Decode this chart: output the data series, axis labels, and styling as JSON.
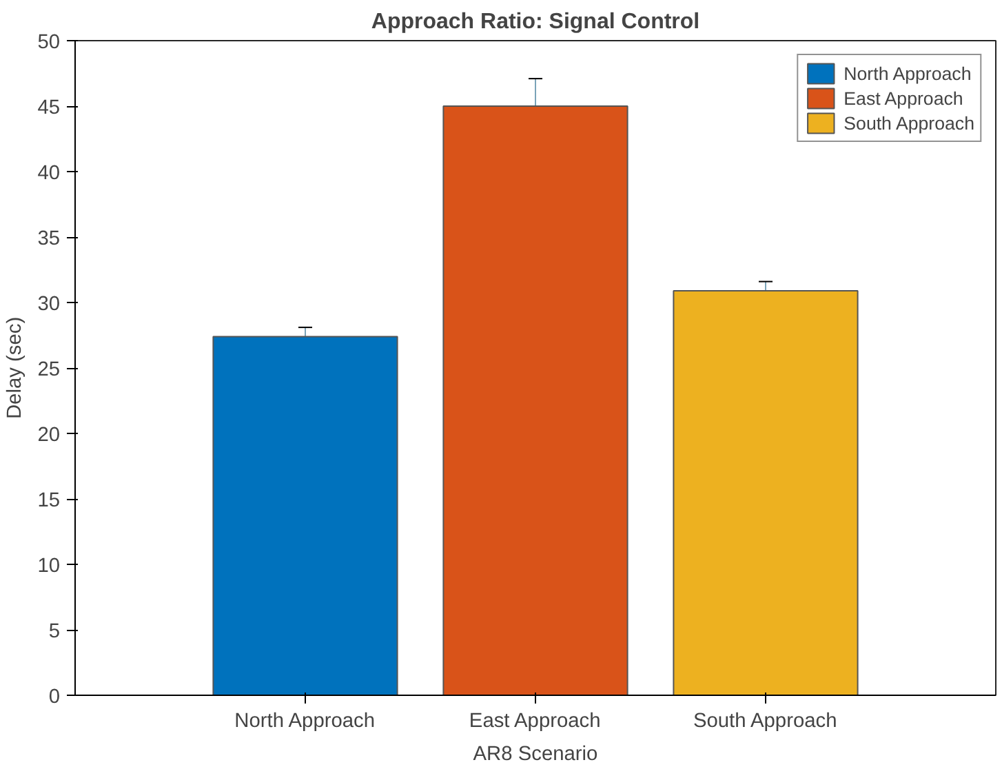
{
  "chart_data": {
    "type": "bar",
    "title": "Approach Ratio: Signal Control",
    "xlabel": "AR8 Scenario",
    "ylabel": "Delay (sec)",
    "categories": [
      "North Approach",
      "East Approach",
      "South Approach"
    ],
    "series": [
      {
        "name": "North Approach",
        "color": "#0072bd",
        "values": [
          27.4,
          null,
          null
        ],
        "errors": [
          0.7,
          null,
          null
        ]
      },
      {
        "name": "East Approach",
        "color": "#d95319",
        "values": [
          null,
          45.0,
          null
        ],
        "errors": [
          null,
          2.1,
          null
        ]
      },
      {
        "name": "South Approach",
        "color": "#edb120",
        "values": [
          null,
          null,
          30.9
        ],
        "errors": [
          null,
          null,
          0.7
        ]
      }
    ],
    "ylim": [
      0,
      50
    ],
    "yticks": [
      0,
      5,
      10,
      15,
      20,
      25,
      30,
      35,
      40,
      45,
      50
    ],
    "grid": false,
    "legend": "top right"
  }
}
